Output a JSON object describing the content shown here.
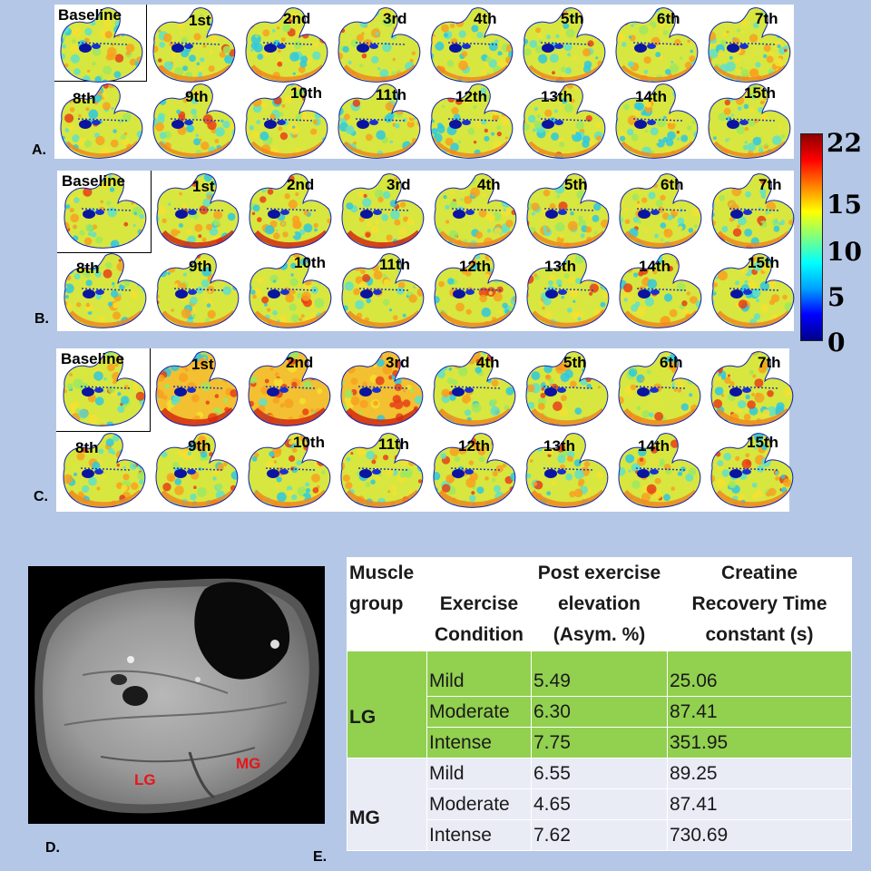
{
  "figure": {
    "panel_labels": {
      "a": "A.",
      "b": "B.",
      "c": "C.",
      "d": "D.",
      "e": "E."
    },
    "time_labels": [
      "Baseline",
      "1st",
      "2nd",
      "3rd",
      "4th",
      "5th",
      "6th",
      "7th",
      "8th",
      "9th",
      "10th",
      "11th",
      "12th",
      "13th",
      "14th",
      "15th"
    ],
    "colorbar": {
      "ticks": [
        "22",
        "15",
        "10",
        "5",
        "0"
      ],
      "colors": [
        "#00008b",
        "#0000ff",
        "#00a0ff",
        "#00ffff",
        "#7fff7f",
        "#ffff00",
        "#ff8000",
        "#ff0000",
        "#8b0000"
      ]
    },
    "mri": {
      "label_lg": "LG",
      "label_mg": "MG"
    }
  },
  "table": {
    "headers": {
      "muscle_group": [
        "Muscle",
        "group"
      ],
      "exercise_condition": [
        "Exercise",
        "Condition"
      ],
      "post_exercise": [
        "Post exercise",
        "elevation",
        "(Asym. %)"
      ],
      "recovery": [
        "Creatine",
        "Recovery Time",
        "constant (s)"
      ]
    },
    "groups": [
      {
        "name": "LG",
        "rows": [
          {
            "condition": "Mild",
            "elevation": "5.49",
            "tau": "25.06"
          },
          {
            "condition": "Moderate",
            "elevation": "6.30",
            "tau": "87.41"
          },
          {
            "condition": "Intense",
            "elevation": "7.75",
            "tau": "351.95"
          }
        ]
      },
      {
        "name": "MG",
        "rows": [
          {
            "condition": "Mild",
            "elevation": "6.55",
            "tau": "89.25"
          },
          {
            "condition": "Moderate",
            "elevation": "4.65",
            "tau": "87.41"
          },
          {
            "condition": "Intense",
            "elevation": "7.62",
            "tau": "730.69"
          }
        ]
      }
    ]
  }
}
